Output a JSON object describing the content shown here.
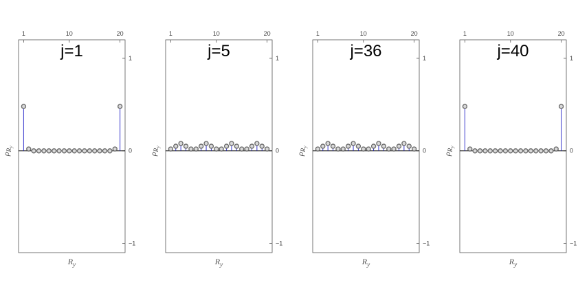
{
  "chart_data": [
    {
      "type": "stem",
      "title": "j=1",
      "xlabel": "R_y",
      "ylabel": "ρ_{R_y}",
      "xlim": [
        0,
        21
      ],
      "ylim": [
        -1.1,
        1.2
      ],
      "x_ticks": [
        1,
        10,
        20
      ],
      "y_ticks": [
        1,
        0,
        -1
      ],
      "x": [
        1,
        2,
        3,
        4,
        5,
        6,
        7,
        8,
        9,
        10,
        11,
        12,
        13,
        14,
        15,
        16,
        17,
        18,
        19,
        20
      ],
      "values": [
        0.48,
        0.02,
        0,
        0,
        0,
        0,
        0,
        0,
        0,
        0,
        0,
        0,
        0,
        0,
        0,
        0,
        0,
        0,
        0.02,
        0.48
      ]
    },
    {
      "type": "stem",
      "title": "j=5",
      "xlabel": "R_y",
      "ylabel": "ρ_{R_y}",
      "xlim": [
        0,
        21
      ],
      "ylim": [
        -1.1,
        1.2
      ],
      "x_ticks": [
        1,
        10,
        20
      ],
      "y_ticks": [
        1,
        0,
        -1
      ],
      "x": [
        1,
        2,
        3,
        4,
        5,
        6,
        7,
        8,
        9,
        10,
        11,
        12,
        13,
        14,
        15,
        16,
        17,
        18,
        19,
        20
      ],
      "values": [
        0.02,
        0.05,
        0.08,
        0.05,
        0.02,
        0.02,
        0.05,
        0.08,
        0.05,
        0.02,
        0.02,
        0.05,
        0.08,
        0.05,
        0.02,
        0.02,
        0.05,
        0.08,
        0.05,
        0.02
      ]
    },
    {
      "type": "stem",
      "title": "j=36",
      "xlabel": "R_y",
      "ylabel": "ρ_{R_y}",
      "xlim": [
        0,
        21
      ],
      "ylim": [
        -1.1,
        1.2
      ],
      "x_ticks": [
        1,
        10,
        20
      ],
      "y_ticks": [
        1,
        0,
        -1
      ],
      "x": [
        1,
        2,
        3,
        4,
        5,
        6,
        7,
        8,
        9,
        10,
        11,
        12,
        13,
        14,
        15,
        16,
        17,
        18,
        19,
        20
      ],
      "values": [
        0.02,
        0.05,
        0.08,
        0.05,
        0.02,
        0.02,
        0.05,
        0.08,
        0.05,
        0.02,
        0.02,
        0.05,
        0.08,
        0.05,
        0.02,
        0.02,
        0.05,
        0.08,
        0.05,
        0.02
      ]
    },
    {
      "type": "stem",
      "title": "j=40",
      "xlabel": "R_y",
      "ylabel": "ρ_{R_y}",
      "xlim": [
        0,
        21
      ],
      "ylim": [
        -1.1,
        1.2
      ],
      "x_ticks": [
        1,
        10,
        20
      ],
      "y_ticks": [
        1,
        0,
        -1
      ],
      "x": [
        1,
        2,
        3,
        4,
        5,
        6,
        7,
        8,
        9,
        10,
        11,
        12,
        13,
        14,
        15,
        16,
        17,
        18,
        19,
        20
      ],
      "values": [
        0.48,
        0.02,
        0,
        0,
        0,
        0,
        0,
        0,
        0,
        0,
        0,
        0,
        0,
        0,
        0,
        0,
        0,
        0,
        0.02,
        0.48
      ]
    }
  ],
  "colors": {
    "stem": "#3333cc",
    "marker_fill": "#d9d9d9",
    "marker_stroke": "#6e6e6e",
    "frame": "#555555"
  }
}
